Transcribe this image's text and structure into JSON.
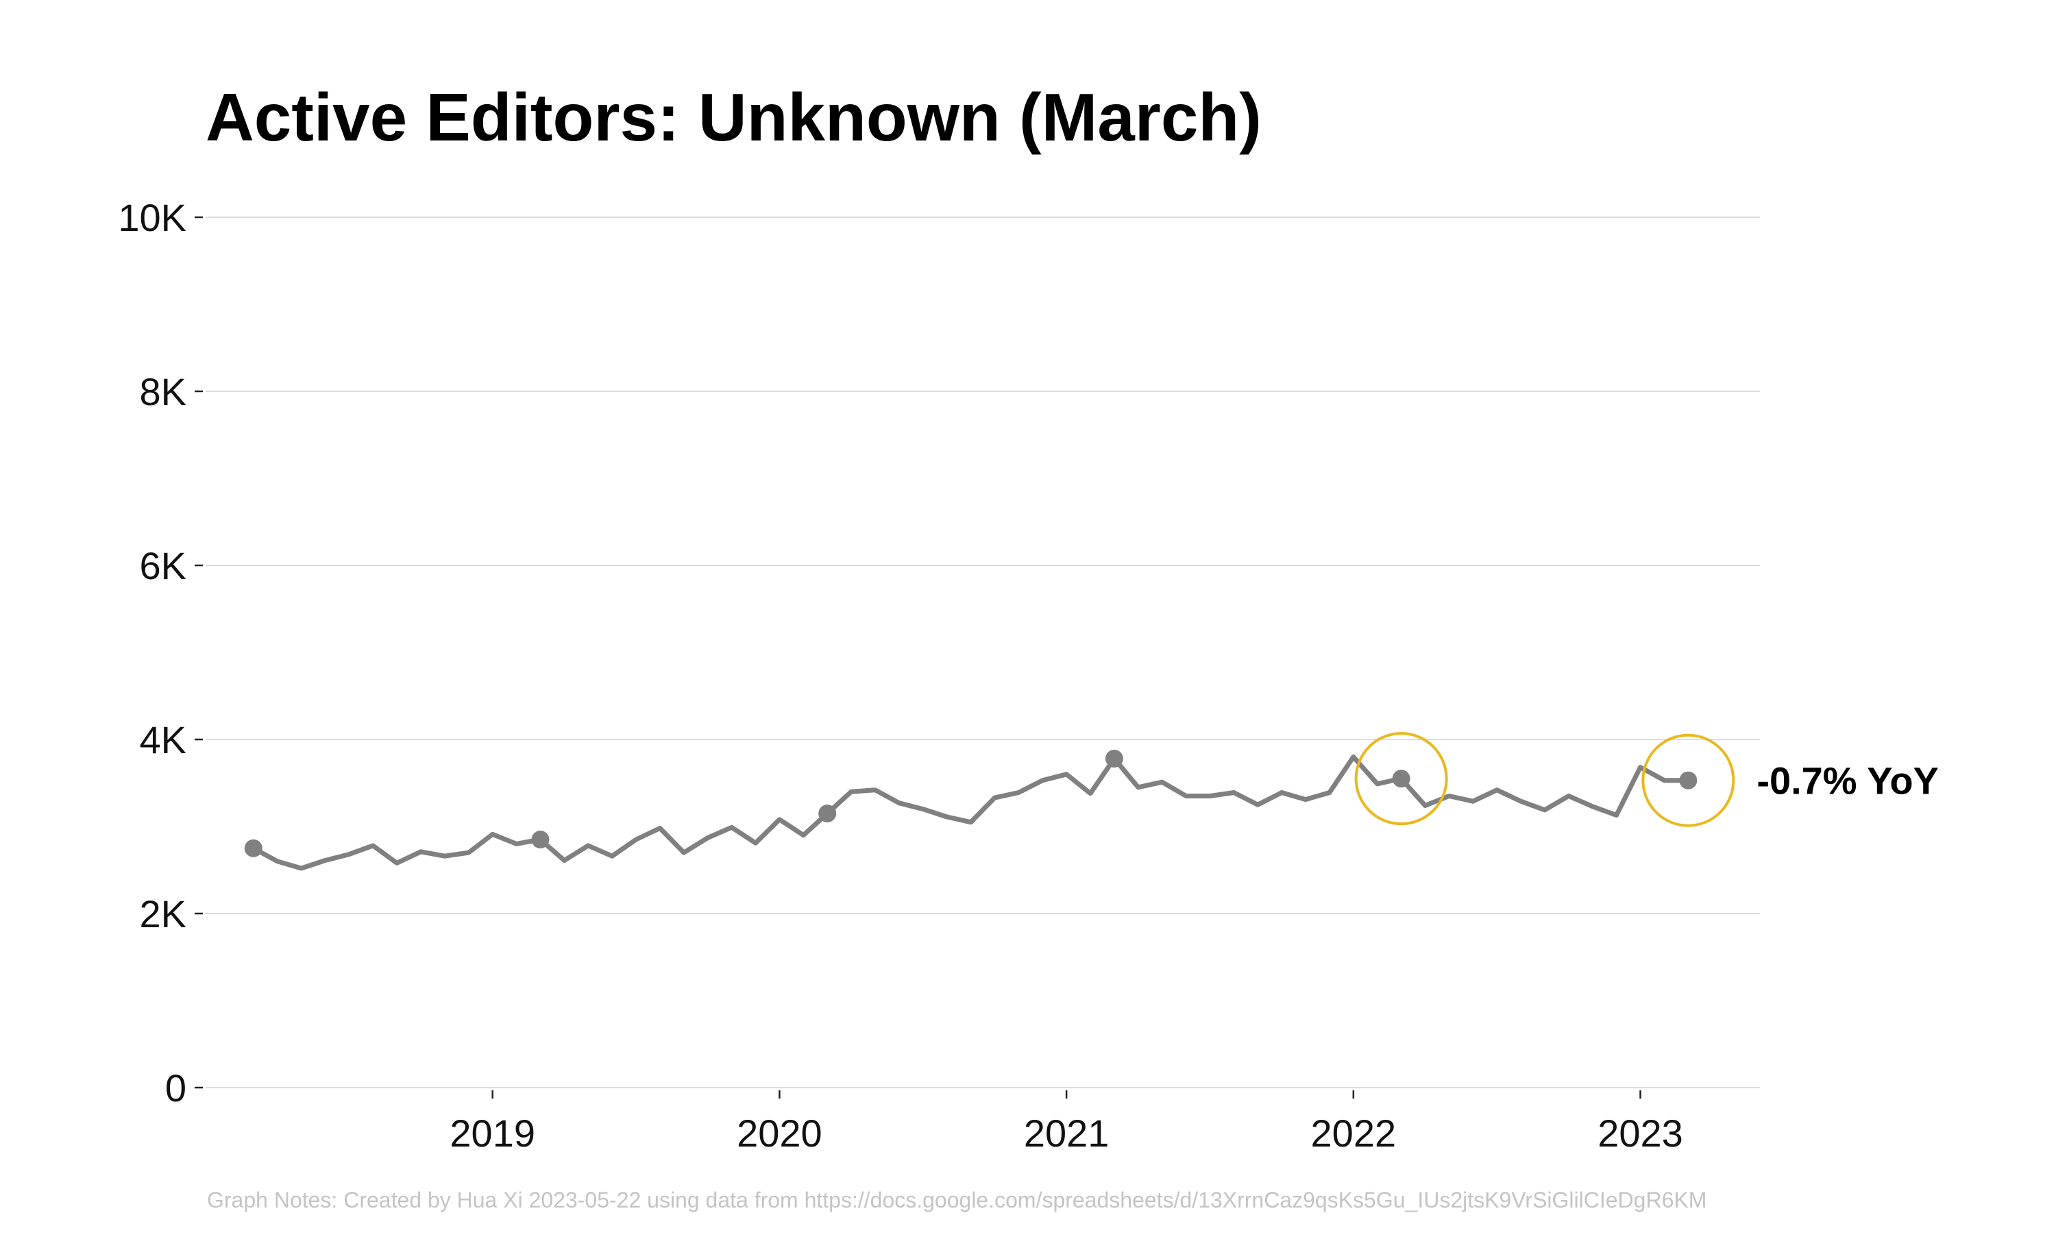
{
  "chart_data": {
    "type": "line",
    "title": "Active Editors: Unknown (March)",
    "xlabel": "",
    "ylabel": "",
    "x_ticks": [
      {
        "label": "2019",
        "value": "2019-01"
      },
      {
        "label": "2020",
        "value": "2020-01"
      },
      {
        "label": "2021",
        "value": "2021-01"
      },
      {
        "label": "2022",
        "value": "2022-01"
      },
      {
        "label": "2023",
        "value": "2023-01"
      }
    ],
    "y_ticks": [
      {
        "label": "0",
        "value": 0
      },
      {
        "label": "2K",
        "value": 2000
      },
      {
        "label": "4K",
        "value": 4000
      },
      {
        "label": "6K",
        "value": 6000
      },
      {
        "label": "8K",
        "value": 8000
      },
      {
        "label": "10K",
        "value": 10000
      }
    ],
    "xlim": [
      "2018-01",
      "2023-06"
    ],
    "ylim": [
      0,
      10000
    ],
    "grid": "horizontal",
    "line_color": "#808080",
    "highlight_color": "#E8B920",
    "series": [
      {
        "x": [
          "2018-03",
          "2018-04",
          "2018-05",
          "2018-06",
          "2018-07",
          "2018-08",
          "2018-09",
          "2018-10",
          "2018-11",
          "2018-12",
          "2019-01",
          "2019-02",
          "2019-03",
          "2019-04",
          "2019-05",
          "2019-06",
          "2019-07",
          "2019-08",
          "2019-09",
          "2019-10",
          "2019-11",
          "2019-12",
          "2020-01",
          "2020-02",
          "2020-03",
          "2020-04",
          "2020-05",
          "2020-06",
          "2020-07",
          "2020-08",
          "2020-09",
          "2020-10",
          "2020-11",
          "2020-12",
          "2021-01",
          "2021-02",
          "2021-03",
          "2021-04",
          "2021-05",
          "2021-06",
          "2021-07",
          "2021-08",
          "2021-09",
          "2021-10",
          "2021-11",
          "2021-12",
          "2022-01",
          "2022-02",
          "2022-03",
          "2022-04",
          "2022-05",
          "2022-06",
          "2022-07",
          "2022-08",
          "2022-09",
          "2022-10",
          "2022-11",
          "2022-12",
          "2023-01",
          "2023-02",
          "2023-03"
        ],
        "values": [
          2750,
          2600,
          2520,
          2610,
          2680,
          2780,
          2580,
          2710,
          2660,
          2700,
          2910,
          2800,
          2850,
          2610,
          2780,
          2660,
          2850,
          2980,
          2700,
          2870,
          2990,
          2810,
          3080,
          2900,
          3150,
          3400,
          3420,
          3270,
          3200,
          3110,
          3050,
          3330,
          3390,
          3530,
          3600,
          3380,
          3780,
          3450,
          3510,
          3350,
          3350,
          3390,
          3250,
          3390,
          3310,
          3390,
          3800,
          3490,
          3550,
          3240,
          3350,
          3290,
          3420,
          3290,
          3190,
          3350,
          3230,
          3130,
          3680,
          3530,
          3530
        ]
      }
    ],
    "march_points": [
      {
        "x": "2018-03",
        "value": 2750
      },
      {
        "x": "2019-03",
        "value": 2850
      },
      {
        "x": "2020-03",
        "value": 3150
      },
      {
        "x": "2021-03",
        "value": 3780
      },
      {
        "x": "2022-03",
        "value": 3550
      },
      {
        "x": "2023-03",
        "value": 3530
      }
    ],
    "highlighted_points": [
      "2022-03",
      "2023-03"
    ],
    "annotation": {
      "text": "-0.7% YoY",
      "x": "2023-03",
      "value": 3530
    },
    "footnote": "Graph Notes: Created by Hua Xi 2023-05-22 using data from https://docs.google.com/spreadsheets/d/13XrrnCaz9qsKs5Gu_IUs2jtsK9VrSiGlilCIeDgR6KM"
  }
}
